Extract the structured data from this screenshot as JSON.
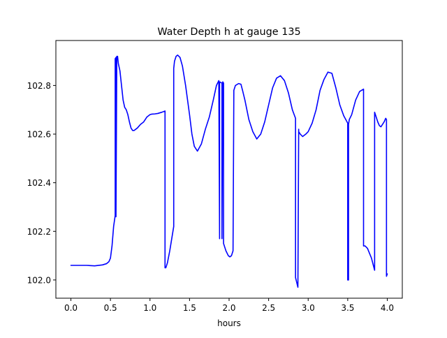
{
  "chart_data": {
    "type": "line",
    "title": "Water Depth h at gauge 135",
    "xlabel": "hours",
    "ylabel": "",
    "xlim": [
      -0.19,
      4.19
    ],
    "ylim": [
      101.925,
      102.985
    ],
    "x_ticks": [
      0.0,
      0.5,
      1.0,
      1.5,
      2.0,
      2.5,
      3.0,
      3.5,
      4.0
    ],
    "x_tick_labels": [
      "0.0",
      "0.5",
      "1.0",
      "1.5",
      "2.0",
      "2.5",
      "3.0",
      "3.5",
      "4.0"
    ],
    "y_ticks": [
      102.0,
      102.2,
      102.4,
      102.6,
      102.8
    ],
    "y_tick_labels": [
      "102.0",
      "102.2",
      "102.4",
      "102.6",
      "102.8"
    ],
    "grid": false,
    "legend": "none",
    "series": [
      {
        "color": "#0000ff",
        "x": [
          0.0,
          0.1,
          0.2,
          0.3,
          0.4,
          0.45,
          0.48,
          0.5,
          0.52,
          0.54,
          0.56,
          0.56,
          0.57,
          0.57,
          0.58,
          0.59,
          0.6,
          0.62,
          0.64,
          0.66,
          0.68,
          0.7,
          0.72,
          0.74,
          0.76,
          0.78,
          0.8,
          0.84,
          0.88,
          0.92,
          0.96,
          1.0,
          1.02,
          1.06,
          1.1,
          1.15,
          1.19,
          1.19,
          1.2,
          1.22,
          1.25,
          1.3,
          1.3,
          1.31,
          1.33,
          1.35,
          1.38,
          1.41,
          1.45,
          1.5,
          1.53,
          1.56,
          1.6,
          1.65,
          1.7,
          1.75,
          1.8,
          1.84,
          1.87,
          1.88,
          1.88,
          1.91,
          1.91,
          1.92,
          1.93,
          1.93,
          1.96,
          1.99,
          2.01,
          2.03,
          2.05,
          2.06,
          2.06,
          2.08,
          2.12,
          2.15,
          2.17,
          2.2,
          2.25,
          2.3,
          2.35,
          2.4,
          2.45,
          2.5,
          2.55,
          2.6,
          2.65,
          2.7,
          2.75,
          2.8,
          2.84,
          2.84,
          2.87,
          2.88,
          2.88,
          2.9,
          2.93,
          2.97,
          3.0,
          3.05,
          3.1,
          3.15,
          3.2,
          3.25,
          3.3,
          3.35,
          3.4,
          3.45,
          3.5,
          3.5,
          3.51,
          3.51,
          3.52,
          3.55,
          3.6,
          3.65,
          3.7,
          3.7,
          3.72,
          3.75,
          3.8,
          3.84,
          3.84,
          3.86,
          3.88,
          3.9,
          3.92,
          3.94,
          3.96,
          3.98,
          3.99,
          3.99,
          4.0
        ],
        "y": [
          102.06,
          102.06,
          102.06,
          102.058,
          102.062,
          102.067,
          102.075,
          102.09,
          102.14,
          102.22,
          102.265,
          102.91,
          102.915,
          102.26,
          102.92,
          102.92,
          102.89,
          102.86,
          102.8,
          102.74,
          102.71,
          102.7,
          102.68,
          102.65,
          102.625,
          102.615,
          102.615,
          102.625,
          102.64,
          102.65,
          102.67,
          102.68,
          102.682,
          102.683,
          102.685,
          102.69,
          102.695,
          102.05,
          102.05,
          102.07,
          102.12,
          102.22,
          102.87,
          102.9,
          102.92,
          102.925,
          102.915,
          102.88,
          102.8,
          102.68,
          102.6,
          102.55,
          102.53,
          102.56,
          102.62,
          102.67,
          102.74,
          102.8,
          102.82,
          102.17,
          102.815,
          102.81,
          102.17,
          102.815,
          102.81,
          102.15,
          102.12,
          102.1,
          102.095,
          102.1,
          102.12,
          102.77,
          102.78,
          102.8,
          102.808,
          102.805,
          102.78,
          102.74,
          102.66,
          102.61,
          102.58,
          102.6,
          102.65,
          102.72,
          102.79,
          102.83,
          102.84,
          102.82,
          102.77,
          102.7,
          102.665,
          102.01,
          101.97,
          102.62,
          102.61,
          102.6,
          102.59,
          102.6,
          102.61,
          102.645,
          102.7,
          102.78,
          102.825,
          102.855,
          102.85,
          102.79,
          102.72,
          102.675,
          102.645,
          102.0,
          102.0,
          102.64,
          102.66,
          102.68,
          102.74,
          102.775,
          102.785,
          102.14,
          102.14,
          102.13,
          102.09,
          102.04,
          102.69,
          102.67,
          102.65,
          102.635,
          102.63,
          102.64,
          102.65,
          102.665,
          102.66,
          102.015,
          102.025
        ]
      }
    ]
  }
}
